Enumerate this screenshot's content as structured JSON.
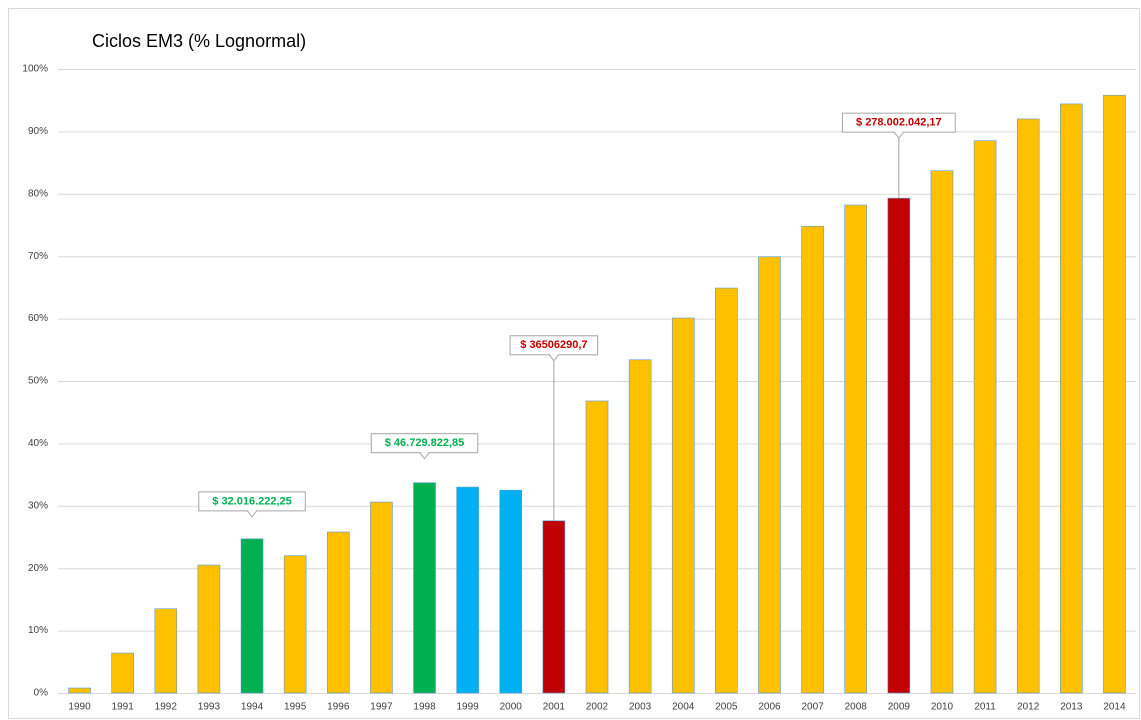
{
  "chart_data": {
    "type": "bar",
    "title": "Ciclos EM3 (% Lognormal)",
    "categories": [
      "1990",
      "1991",
      "1992",
      "1993",
      "1994",
      "1995",
      "1996",
      "1997",
      "1998",
      "1999",
      "2000",
      "2001",
      "2002",
      "2003",
      "2004",
      "2005",
      "2006",
      "2007",
      "2008",
      "2009",
      "2010",
      "2011",
      "2012",
      "2013",
      "2014"
    ],
    "values": [
      0.8,
      6.4,
      13.5,
      20.5,
      24.7,
      22.0,
      25.8,
      30.6,
      33.7,
      33.0,
      32.5,
      27.6,
      46.8,
      53.4,
      60.1,
      64.9,
      69.9,
      74.8,
      78.2,
      79.3,
      83.7,
      88.5,
      92.0,
      94.4,
      95.8
    ],
    "colors": [
      "#ffc000",
      "#ffc000",
      "#ffc000",
      "#ffc000",
      "#00b050",
      "#ffc000",
      "#ffc000",
      "#ffc000",
      "#00b050",
      "#00b0f0",
      "#00b0f0",
      "#c00000",
      "#ffc000",
      "#ffc000",
      "#ffc000",
      "#ffc000",
      "#ffc000",
      "#ffc000",
      "#ffc000",
      "#c00000",
      "#ffc000",
      "#ffc000",
      "#ffc000",
      "#ffc000",
      "#ffc000"
    ],
    "ylim": [
      0,
      100
    ],
    "yticks": [
      {
        "value": 0,
        "label": "0%"
      },
      {
        "value": 10,
        "label": "10%"
      },
      {
        "value": 20,
        "label": "20%"
      },
      {
        "value": 30,
        "label": "30%"
      },
      {
        "value": 40,
        "label": "40%"
      },
      {
        "value": 50,
        "label": "50%"
      },
      {
        "value": 60,
        "label": "60%"
      },
      {
        "value": 70,
        "label": "70%"
      },
      {
        "value": 80,
        "label": "80%"
      },
      {
        "value": 90,
        "label": "90%"
      },
      {
        "value": 100,
        "label": "100%"
      }
    ],
    "grid": true,
    "annotations": [
      {
        "text": "$ 32.016.222,25",
        "category": "1994",
        "color": "#00b050"
      },
      {
        "text": "$ 46.729.822,85",
        "category": "1998",
        "color": "#00b050"
      },
      {
        "text": "$ 36506290,7",
        "category": "2001",
        "color": "#c00000"
      },
      {
        "text": "$ 278.002.042,17",
        "category": "2009",
        "color": "#c00000"
      }
    ]
  }
}
